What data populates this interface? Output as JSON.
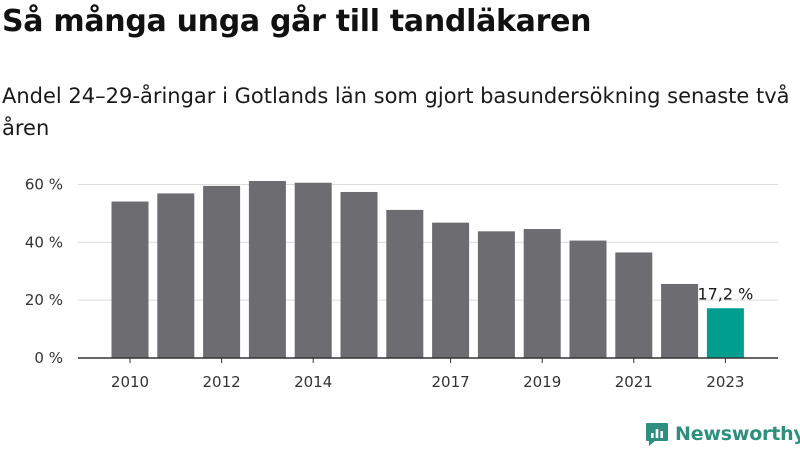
{
  "header": {
    "title": "Så många unga går till tandläkaren",
    "subtitle": "Andel 24–29-åringar i Gotlands län som gjort basundersökning senaste två åren"
  },
  "brand": {
    "name": "Newsworthy",
    "icon": "newsworthy-logo-icon",
    "color": "#2f8f7f"
  },
  "colors": {
    "bar": "#6d6c70",
    "highlight": "#009e8e",
    "grid": "#dcdcdc",
    "axis": "#333333"
  },
  "chart_data": {
    "type": "bar",
    "title": "Så många unga går till tandläkaren",
    "subtitle": "Andel 24–29-åringar i Gotlands län som gjort basundersökning senaste två åren",
    "xlabel": "",
    "ylabel": "",
    "categories": [
      "2010",
      "2011",
      "2012",
      "2013",
      "2014",
      "2015",
      "2016",
      "2017",
      "2018",
      "2019",
      "2020",
      "2021",
      "2022",
      "2023"
    ],
    "values": [
      54.1,
      56.9,
      59.5,
      61.2,
      60.6,
      57.4,
      51.2,
      46.8,
      43.8,
      44.6,
      40.6,
      36.5,
      25.6,
      17.2
    ],
    "highlight_index": 13,
    "x_tick_labels": [
      "2010",
      "",
      "2012",
      "",
      "2014",
      "",
      "",
      "2017",
      "",
      "2019",
      "",
      "2021",
      "",
      "2023"
    ],
    "y_ticks": [
      0,
      20,
      40,
      60
    ],
    "y_tick_labels": [
      "0 %",
      "20 %",
      "40 %",
      "60 %"
    ],
    "ylim": [
      0,
      65
    ],
    "grid": true,
    "data_labels": [
      {
        "index": 13,
        "text": "17,2 %"
      }
    ]
  }
}
